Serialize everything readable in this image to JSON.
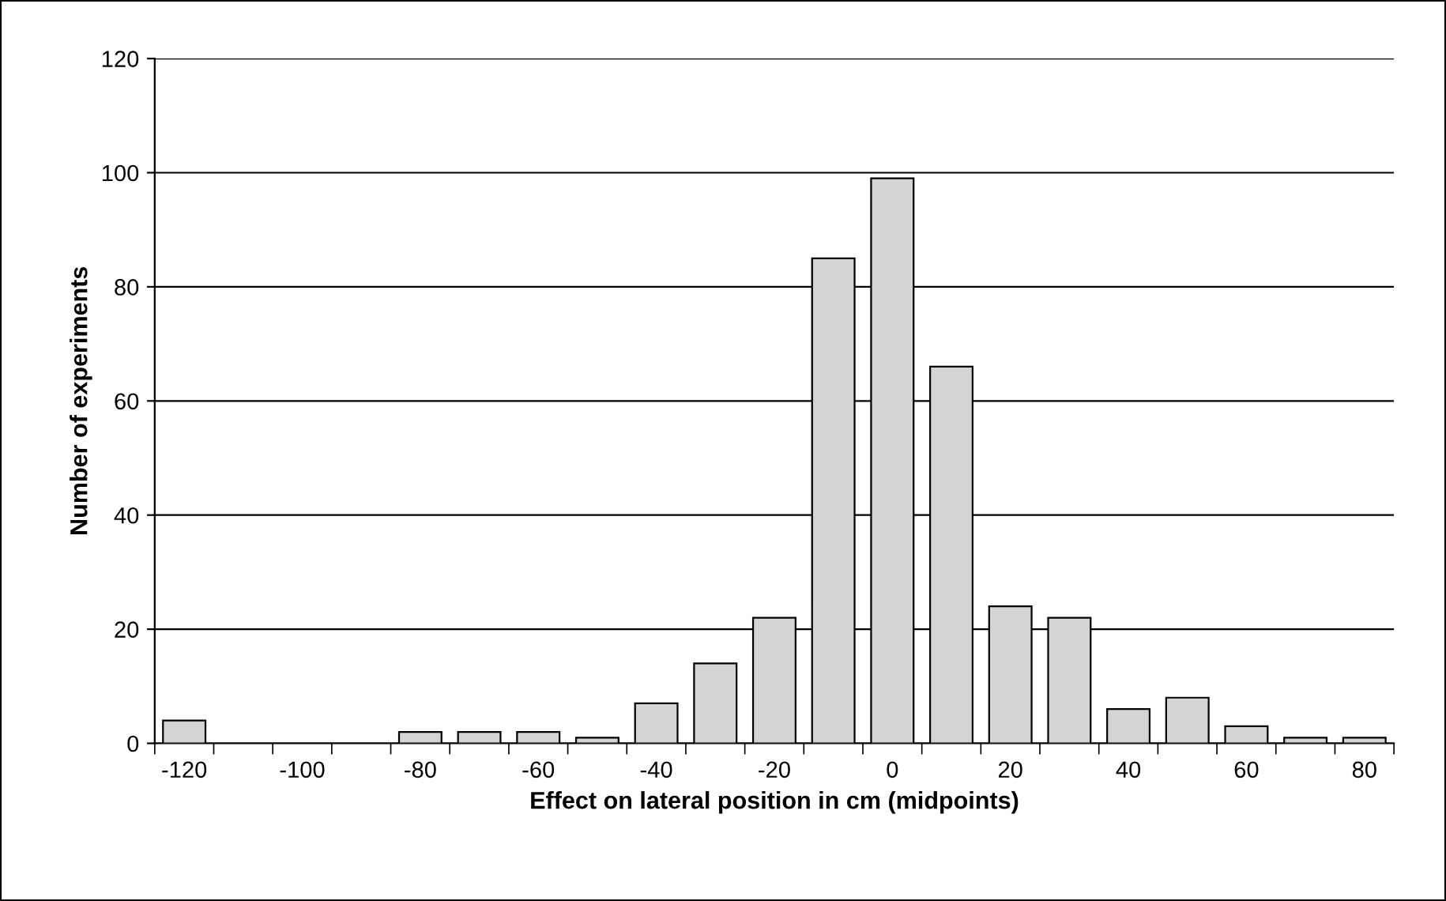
{
  "chart_data": {
    "type": "bar",
    "xlabel": "Effect on lateral position in cm (midpoints)",
    "ylabel": "Number of experiments",
    "categories": [
      "-120",
      null,
      "-100",
      null,
      "-80",
      null,
      "-60",
      null,
      "-40",
      null,
      "-20",
      null,
      "0",
      null,
      "20",
      null,
      "40",
      null,
      "60",
      null,
      "80"
    ],
    "values": [
      4,
      0,
      0,
      0,
      2,
      2,
      2,
      1,
      7,
      14,
      22,
      85,
      99,
      66,
      24,
      22,
      6,
      8,
      3,
      1,
      1
    ],
    "color": "#d4d4d4",
    "ylim": [
      0,
      120
    ],
    "yticks": [
      0,
      20,
      40,
      60,
      80,
      100,
      120
    ],
    "grid": "y",
    "legend": false
  }
}
